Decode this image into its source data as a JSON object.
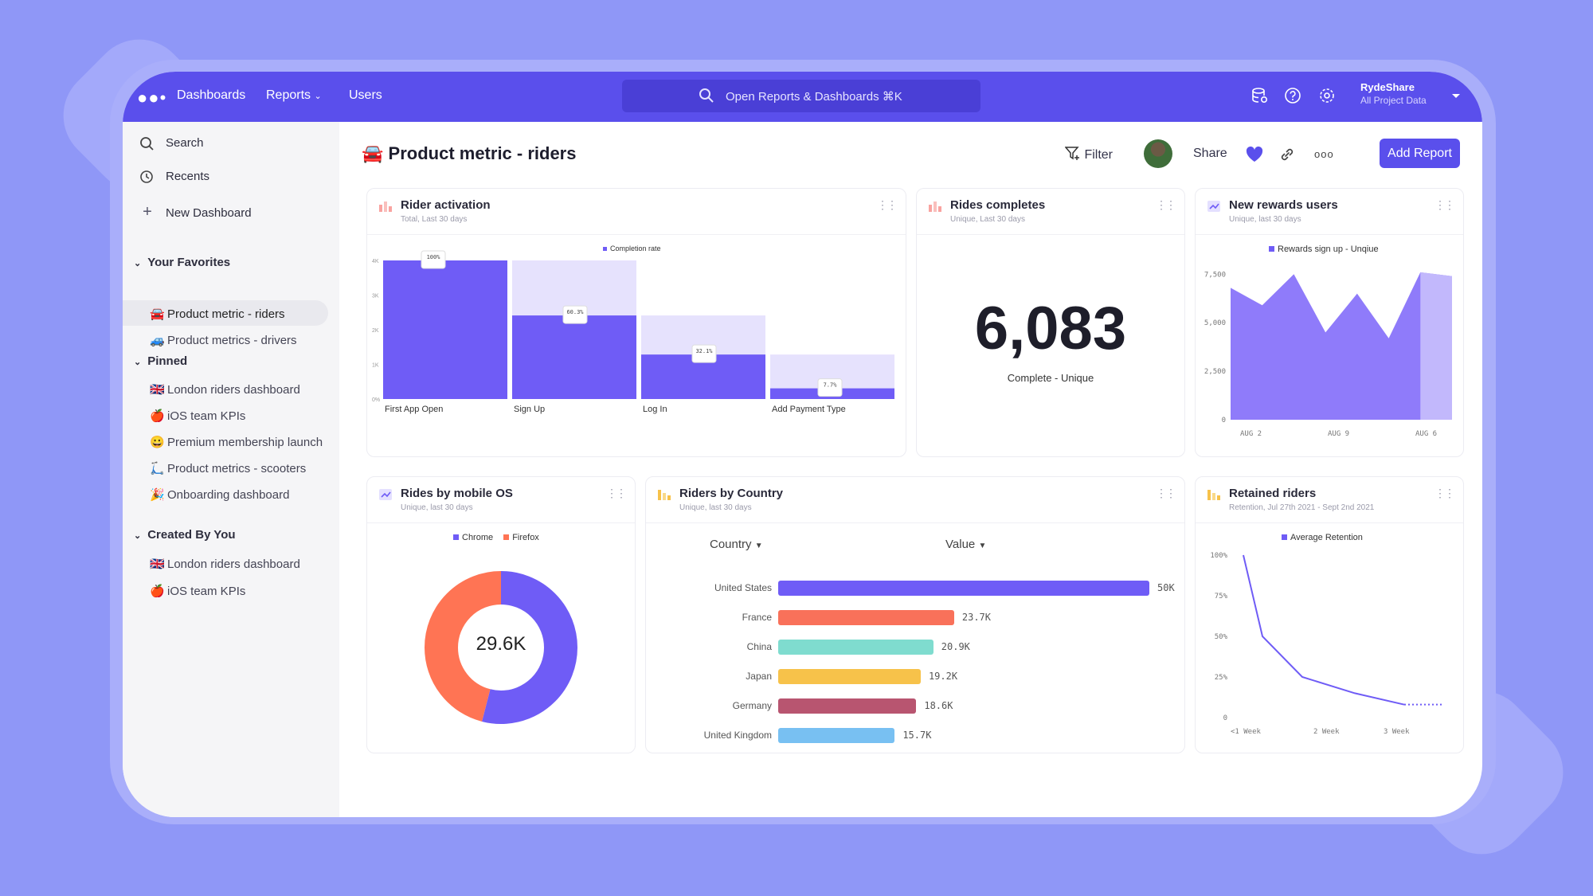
{
  "nav": {
    "logo": "●●•",
    "dashboards": "Dashboards",
    "reports": "Reports",
    "users": "Users",
    "search_placeholder": "Open Reports & Dashboards ⌘K",
    "account_name": "RydeShare",
    "account_scope": "All Project Data"
  },
  "sidebar": {
    "search": "Search",
    "recents": "Recents",
    "new_dashboard": "New Dashboard",
    "favorites_title": "Your Favorites",
    "favorites": [
      {
        "emoji": "🚘",
        "label": "Product metric - riders"
      },
      {
        "emoji": "🚙",
        "label": "Product metrics - drivers"
      }
    ],
    "pinned_title": "Pinned",
    "pinned": [
      {
        "emoji": "🇬🇧",
        "label": "London riders dashboard"
      },
      {
        "emoji": "🍎",
        "label": "iOS team KPIs"
      },
      {
        "emoji": "😀",
        "label": "Premium membership launch"
      },
      {
        "emoji": "🛴",
        "label": "Product metrics - scooters"
      },
      {
        "emoji": "🎉",
        "label": "Onboarding dashboard"
      }
    ],
    "created_title": "Created By You",
    "created": [
      {
        "emoji": "🇬🇧",
        "label": "London riders dashboard"
      },
      {
        "emoji": "🍎",
        "label": "iOS team KPIs"
      }
    ]
  },
  "header": {
    "emoji": "🚘",
    "title": "Product metric - riders",
    "filter": "Filter",
    "share": "Share",
    "add_report": "Add Report"
  },
  "cards": {
    "activation": {
      "title": "Rider activation",
      "subtitle": "Total, Last 30 days",
      "legend": "Completion rate",
      "chart_data": {
        "type": "bar",
        "categories": [
          "First App Open",
          "Sign Up",
          "Log In",
          "Add Payment Type"
        ],
        "values": [
          100,
          60.3,
          32.1,
          7.7
        ],
        "value_labels": [
          "100%",
          "60.3%",
          "32.1%",
          "7.7%"
        ],
        "y_ticks": [
          "4K",
          "3K",
          "2K",
          "1K",
          "0%"
        ],
        "ylim": [
          0,
          100
        ]
      }
    },
    "rides": {
      "title": "Rides completes",
      "subtitle": "Unique, Last 30 days",
      "value": "6,083",
      "label": "Complete - Unique"
    },
    "rewards": {
      "title": "New rewards users",
      "subtitle": "Unique, last 30 days",
      "legend": "Rewards sign up - Unqiue",
      "chart_data": {
        "type": "area",
        "values": [
          6800,
          5900,
          7500,
          4500,
          6500,
          4200,
          7600,
          7400
        ],
        "y_ticks": [
          "7,500",
          "5,000",
          "2,500",
          "0"
        ],
        "x_ticks": [
          "AUG 2",
          "AUG 9",
          "AUG 6"
        ],
        "ylim": [
          0,
          7800
        ]
      }
    },
    "os": {
      "title": "Rides by mobile OS",
      "subtitle": "Unique, last 30 days",
      "center": "29.6K",
      "chart_data": {
        "type": "pie",
        "series": [
          {
            "name": "Chrome",
            "value": 0.54,
            "color": "#6f5cf6"
          },
          {
            "name": "Firefox",
            "value": 0.46,
            "color": "#ff7454"
          }
        ]
      }
    },
    "country": {
      "title": "Riders by Country",
      "subtitle": "Unique, last 30 days",
      "dd_country": "Country",
      "dd_value": "Value",
      "chart_data": {
        "type": "bar",
        "categories": [
          "United States",
          "France",
          "China",
          "Japan",
          "Germany",
          "United Kingdom"
        ],
        "values": [
          50,
          23.7,
          20.9,
          19.2,
          18.6,
          15.7
        ],
        "value_labels": [
          "50K",
          "23.7K",
          "20.9K",
          "19.2K",
          "18.6K",
          "15.7K"
        ],
        "colors": [
          "#6f5cf6",
          "#f9715a",
          "#7fdccf",
          "#f7c24a",
          "#b85570",
          "#78c0f2"
        ],
        "xlim": [
          0,
          50
        ]
      }
    },
    "retained": {
      "title": "Retained riders",
      "subtitle": "Retention, Jul 27th 2021 - Sept 2nd 2021",
      "legend": "Average Retention",
      "chart_data": {
        "type": "line",
        "values": [
          100,
          50,
          25,
          15,
          8
        ],
        "y_ticks": [
          "100%",
          "75%",
          "50%",
          "25%",
          "0"
        ],
        "x_ticks": [
          "<1 Week",
          "2 Week",
          "3 Week"
        ],
        "ylim": [
          0,
          100
        ]
      }
    }
  }
}
